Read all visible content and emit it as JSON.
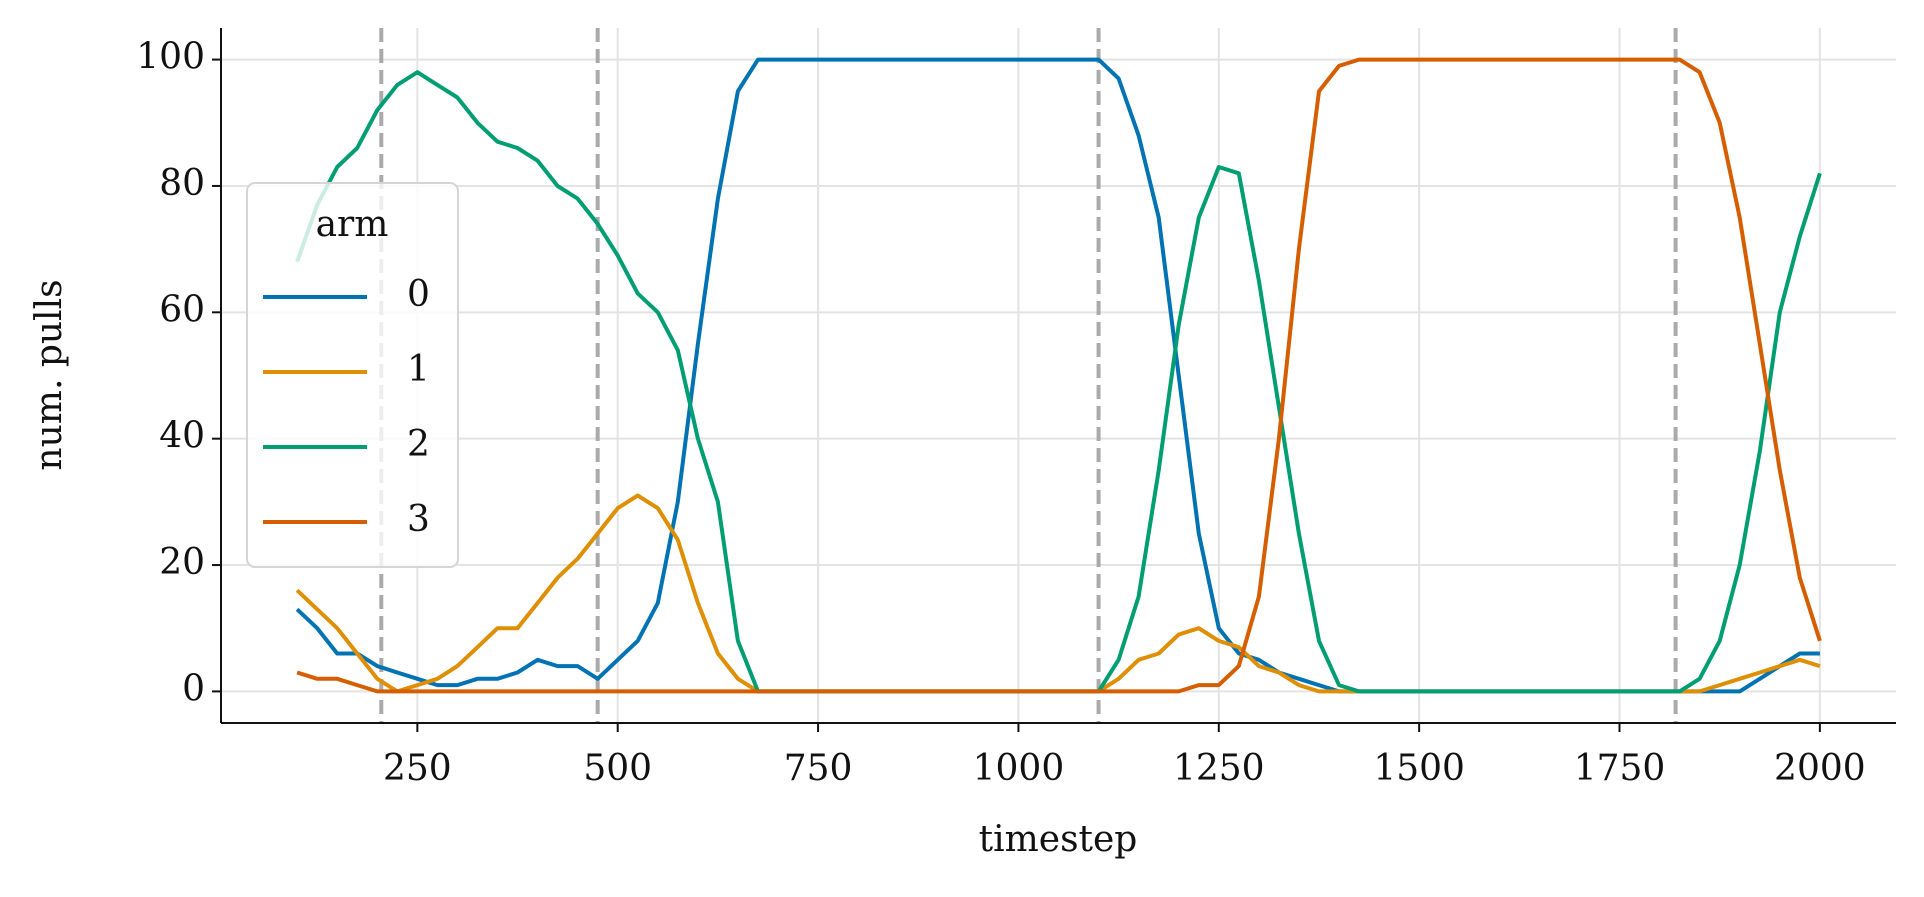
{
  "chart_data": {
    "type": "line",
    "xlabel": "timestep",
    "ylabel": "num. pulls",
    "legend_title": "arm",
    "legend": "left",
    "x": [
      100,
      125,
      150,
      175,
      200,
      225,
      250,
      275,
      300,
      325,
      350,
      375,
      400,
      425,
      450,
      475,
      500,
      525,
      550,
      575,
      600,
      625,
      650,
      675,
      700,
      725,
      750,
      775,
      800,
      825,
      850,
      875,
      900,
      925,
      950,
      975,
      1000,
      1025,
      1050,
      1075,
      1100,
      1125,
      1150,
      1175,
      1200,
      1225,
      1250,
      1275,
      1300,
      1325,
      1350,
      1375,
      1400,
      1425,
      1450,
      1475,
      1500,
      1525,
      1550,
      1575,
      1600,
      1625,
      1650,
      1675,
      1700,
      1725,
      1750,
      1775,
      1800,
      1825,
      1850,
      1875,
      1900,
      1925,
      1950,
      1975,
      2000
    ],
    "series": [
      {
        "name": "0",
        "color": "#0173b2",
        "values": [
          13,
          10,
          6,
          6,
          4,
          3,
          2,
          1,
          1,
          2,
          2,
          3,
          5,
          4,
          4,
          2,
          5,
          8,
          14,
          30,
          55,
          78,
          95,
          100,
          100,
          100,
          100,
          100,
          100,
          100,
          100,
          100,
          100,
          100,
          100,
          100,
          100,
          100,
          100,
          100,
          100,
          97,
          88,
          75,
          50,
          25,
          10,
          6,
          5,
          3,
          2,
          1,
          0,
          0,
          0,
          0,
          0,
          0,
          0,
          0,
          0,
          0,
          0,
          0,
          0,
          0,
          0,
          0,
          0,
          0,
          0,
          0,
          0,
          2,
          4,
          6,
          6
        ]
      },
      {
        "name": "1",
        "color": "#de8f05",
        "values": [
          16,
          13,
          10,
          6,
          2,
          0,
          1,
          2,
          4,
          7,
          10,
          10,
          14,
          18,
          21,
          25,
          29,
          31,
          29,
          24,
          14,
          6,
          2,
          0,
          0,
          0,
          0,
          0,
          0,
          0,
          0,
          0,
          0,
          0,
          0,
          0,
          0,
          0,
          0,
          0,
          0,
          2,
          5,
          6,
          9,
          10,
          8,
          7,
          4,
          3,
          1,
          0,
          0,
          0,
          0,
          0,
          0,
          0,
          0,
          0,
          0,
          0,
          0,
          0,
          0,
          0,
          0,
          0,
          0,
          0,
          0,
          1,
          2,
          3,
          4,
          5,
          4
        ]
      },
      {
        "name": "2",
        "color": "#029e73",
        "values": [
          68,
          77,
          83,
          86,
          92,
          96,
          98,
          96,
          94,
          90,
          87,
          86,
          84,
          80,
          78,
          74,
          69,
          63,
          60,
          54,
          40,
          30,
          8,
          0,
          0,
          0,
          0,
          0,
          0,
          0,
          0,
          0,
          0,
          0,
          0,
          0,
          0,
          0,
          0,
          0,
          0,
          5,
          15,
          35,
          58,
          75,
          83,
          82,
          65,
          45,
          25,
          8,
          1,
          0,
          0,
          0,
          0,
          0,
          0,
          0,
          0,
          0,
          0,
          0,
          0,
          0,
          0,
          0,
          0,
          0,
          2,
          8,
          20,
          38,
          60,
          72,
          82
        ]
      },
      {
        "name": "3",
        "color": "#d55e00",
        "values": [
          3,
          2,
          2,
          1,
          0,
          0,
          0,
          0,
          0,
          0,
          0,
          0,
          0,
          0,
          0,
          0,
          0,
          0,
          0,
          0,
          0,
          0,
          0,
          0,
          0,
          0,
          0,
          0,
          0,
          0,
          0,
          0,
          0,
          0,
          0,
          0,
          0,
          0,
          0,
          0,
          0,
          0,
          0,
          0,
          0,
          1,
          1,
          4,
          15,
          40,
          70,
          95,
          99,
          100,
          100,
          100,
          100,
          100,
          100,
          100,
          100,
          100,
          100,
          100,
          100,
          100,
          100,
          100,
          100,
          100,
          98,
          90,
          75,
          55,
          35,
          18,
          8
        ]
      }
    ],
    "vlines": [
      205,
      475,
      1100,
      1820
    ],
    "vline_color": "#aaaaaa",
    "xlim": [
      5,
      2095
    ],
    "ylim": [
      -5,
      105
    ],
    "xticks": [
      250,
      500,
      750,
      1000,
      1250,
      1500,
      1750,
      2000
    ],
    "yticks": [
      0,
      20,
      40,
      60,
      80,
      100
    ],
    "grid": true
  }
}
